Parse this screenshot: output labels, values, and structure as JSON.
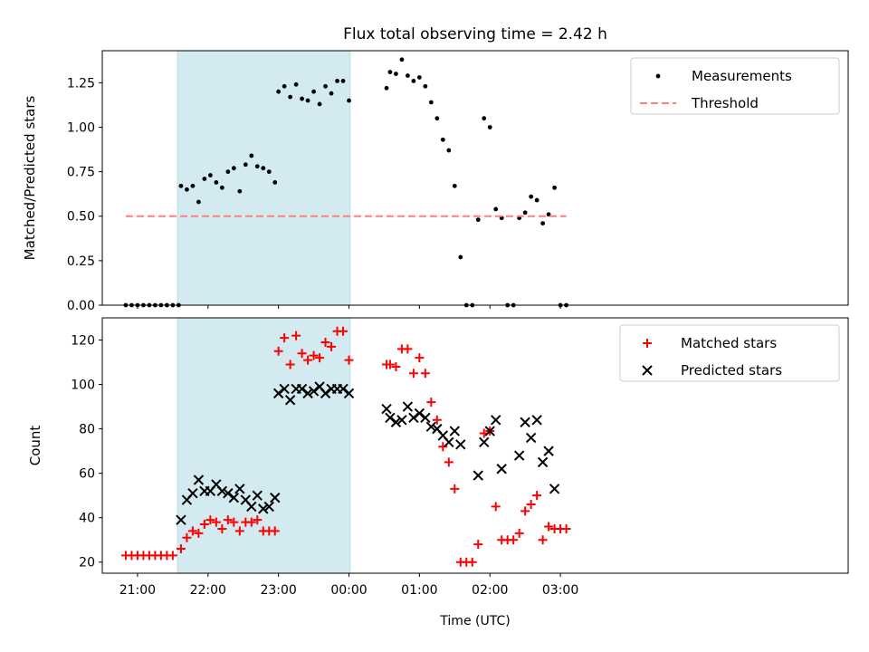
{
  "figure": {
    "title": "Flux total observing time = 2.42 h",
    "xlabel": "Time (UTC)"
  },
  "chart_data": [
    {
      "type": "scatter",
      "ylabel": "Matched/Predicted stars",
      "ylim": [
        0,
        1.43
      ],
      "yticks": [
        "0.00",
        "0.25",
        "0.50",
        "0.75",
        "1.00",
        "1.25"
      ],
      "grid": false,
      "legend": "top-right",
      "shaded_interval": {
        "start": "21:34",
        "end": "00:01",
        "color": "#d3eaf0"
      },
      "series": [
        {
          "name": "Measurements",
          "marker": "dot",
          "color": "#000000",
          "points": [
            [
              "20:50",
              0
            ],
            [
              "20:55",
              0
            ],
            [
              "21:00",
              0
            ],
            [
              "21:05",
              0
            ],
            [
              "21:10",
              0
            ],
            [
              "21:15",
              0
            ],
            [
              "21:20",
              0
            ],
            [
              "21:25",
              0
            ],
            [
              "21:30",
              0
            ],
            [
              "21:35",
              0
            ],
            [
              "21:37",
              0.67
            ],
            [
              "21:42",
              0.65
            ],
            [
              "21:47",
              0.67
            ],
            [
              "21:52",
              0.58
            ],
            [
              "21:57",
              0.71
            ],
            [
              "22:02",
              0.73
            ],
            [
              "22:07",
              0.69
            ],
            [
              "22:12",
              0.66
            ],
            [
              "22:17",
              0.75
            ],
            [
              "22:22",
              0.77
            ],
            [
              "22:27",
              0.64
            ],
            [
              "22:32",
              0.79
            ],
            [
              "22:37",
              0.84
            ],
            [
              "22:42",
              0.78
            ],
            [
              "22:47",
              0.77
            ],
            [
              "22:52",
              0.75
            ],
            [
              "22:57",
              0.69
            ],
            [
              "23:00",
              1.2
            ],
            [
              "23:05",
              1.23
            ],
            [
              "23:10",
              1.17
            ],
            [
              "23:15",
              1.24
            ],
            [
              "23:20",
              1.16
            ],
            [
              "23:25",
              1.15
            ],
            [
              "23:30",
              1.2
            ],
            [
              "23:35",
              1.13
            ],
            [
              "23:40",
              1.23
            ],
            [
              "23:45",
              1.19
            ],
            [
              "23:50",
              1.26
            ],
            [
              "23:55",
              1.26
            ],
            [
              "00:00",
              1.15
            ],
            [
              "00:32",
              1.22
            ],
            [
              "00:35",
              1.31
            ],
            [
              "00:40",
              1.3
            ],
            [
              "00:45",
              1.38
            ],
            [
              "00:50",
              1.29
            ],
            [
              "00:55",
              1.26
            ],
            [
              "01:00",
              1.28
            ],
            [
              "01:05",
              1.23
            ],
            [
              "01:10",
              1.14
            ],
            [
              "01:15",
              1.05
            ],
            [
              "01:20",
              0.93
            ],
            [
              "01:25",
              0.87
            ],
            [
              "01:30",
              0.67
            ],
            [
              "01:35",
              0.27
            ],
            [
              "01:40",
              0
            ],
            [
              "01:45",
              0
            ],
            [
              "01:50",
              0.48
            ],
            [
              "01:55",
              1.05
            ],
            [
              "02:00",
              1.0
            ],
            [
              "02:05",
              0.54
            ],
            [
              "02:10",
              0.49
            ],
            [
              "02:15",
              0
            ],
            [
              "02:20",
              0
            ],
            [
              "02:25",
              0.49
            ],
            [
              "02:30",
              0.52
            ],
            [
              "02:35",
              0.61
            ],
            [
              "02:40",
              0.59
            ],
            [
              "02:45",
              0.46
            ],
            [
              "02:50",
              0.51
            ],
            [
              "02:55",
              0.66
            ],
            [
              "03:00",
              0
            ],
            [
              "03:05",
              0
            ]
          ]
        },
        {
          "name": "Threshold",
          "style": "dashed",
          "color": "#ff7f7f",
          "points": [
            [
              "20:50",
              0.5
            ],
            [
              "03:05",
              0.5
            ]
          ]
        }
      ]
    },
    {
      "type": "scatter",
      "ylabel": "Count",
      "ylim": [
        15,
        130
      ],
      "yticks": [
        "20",
        "40",
        "60",
        "80",
        "100",
        "120"
      ],
      "xticks": [
        "21:00",
        "22:00",
        "23:00",
        "00:00",
        "01:00",
        "02:00",
        "03:00"
      ],
      "grid": false,
      "legend": "top-right",
      "shaded_interval": {
        "start": "21:34",
        "end": "00:01",
        "color": "#d3eaf0"
      },
      "series": [
        {
          "name": "Matched stars",
          "marker": "plus",
          "color": "#ff0000",
          "points": [
            [
              "20:50",
              23
            ],
            [
              "20:55",
              23
            ],
            [
              "21:00",
              23
            ],
            [
              "21:05",
              23
            ],
            [
              "21:10",
              23
            ],
            [
              "21:15",
              23
            ],
            [
              "21:20",
              23
            ],
            [
              "21:25",
              23
            ],
            [
              "21:30",
              23
            ],
            [
              "21:37",
              26
            ],
            [
              "21:42",
              31
            ],
            [
              "21:47",
              34
            ],
            [
              "21:52",
              33
            ],
            [
              "21:57",
              37
            ],
            [
              "22:02",
              39
            ],
            [
              "22:07",
              38
            ],
            [
              "22:12",
              35
            ],
            [
              "22:17",
              39
            ],
            [
              "22:22",
              38
            ],
            [
              "22:27",
              34
            ],
            [
              "22:32",
              38
            ],
            [
              "22:37",
              38
            ],
            [
              "22:42",
              39
            ],
            [
              "22:47",
              34
            ],
            [
              "22:52",
              34
            ],
            [
              "22:57",
              34
            ],
            [
              "23:00",
              115
            ],
            [
              "23:05",
              121
            ],
            [
              "23:10",
              109
            ],
            [
              "23:15",
              122
            ],
            [
              "23:20",
              114
            ],
            [
              "23:25",
              111
            ],
            [
              "23:30",
              113
            ],
            [
              "23:35",
              112
            ],
            [
              "23:40",
              119
            ],
            [
              "23:45",
              117
            ],
            [
              "23:50",
              124
            ],
            [
              "23:55",
              124
            ],
            [
              "00:00",
              111
            ],
            [
              "00:32",
              109
            ],
            [
              "00:35",
              109
            ],
            [
              "00:40",
              108
            ],
            [
              "00:45",
              116
            ],
            [
              "00:50",
              116
            ],
            [
              "00:55",
              105
            ],
            [
              "01:00",
              112
            ],
            [
              "01:05",
              105
            ],
            [
              "01:10",
              92
            ],
            [
              "01:15",
              84
            ],
            [
              "01:20",
              72
            ],
            [
              "01:25",
              65
            ],
            [
              "01:30",
              53
            ],
            [
              "01:35",
              20
            ],
            [
              "01:40",
              20
            ],
            [
              "01:45",
              20
            ],
            [
              "01:50",
              28
            ],
            [
              "01:55",
              78
            ],
            [
              "02:00",
              79
            ],
            [
              "02:05",
              45
            ],
            [
              "02:10",
              30
            ],
            [
              "02:15",
              30
            ],
            [
              "02:20",
              30
            ],
            [
              "02:25",
              33
            ],
            [
              "02:30",
              43
            ],
            [
              "02:35",
              46
            ],
            [
              "02:40",
              50
            ],
            [
              "02:45",
              30
            ],
            [
              "02:50",
              36
            ],
            [
              "02:55",
              35
            ],
            [
              "03:00",
              35
            ],
            [
              "03:05",
              35
            ]
          ]
        },
        {
          "name": "Predicted stars",
          "marker": "x",
          "color": "#000000",
          "points": [
            [
              "21:37",
              39
            ],
            [
              "21:42",
              48
            ],
            [
              "21:47",
              51
            ],
            [
              "21:52",
              57
            ],
            [
              "21:57",
              52
            ],
            [
              "22:02",
              52
            ],
            [
              "22:07",
              55
            ],
            [
              "22:12",
              52
            ],
            [
              "22:17",
              51
            ],
            [
              "22:22",
              49
            ],
            [
              "22:27",
              53
            ],
            [
              "22:32",
              48
            ],
            [
              "22:37",
              45
            ],
            [
              "22:42",
              50
            ],
            [
              "22:47",
              44
            ],
            [
              "22:52",
              45
            ],
            [
              "22:57",
              49
            ],
            [
              "23:00",
              96
            ],
            [
              "23:05",
              98
            ],
            [
              "23:10",
              93
            ],
            [
              "23:15",
              98
            ],
            [
              "23:20",
              98
            ],
            [
              "23:25",
              96
            ],
            [
              "23:30",
              97
            ],
            [
              "23:35",
              99
            ],
            [
              "23:40",
              96
            ],
            [
              "23:45",
              98
            ],
            [
              "23:50",
              98
            ],
            [
              "23:55",
              98
            ],
            [
              "00:00",
              96
            ],
            [
              "00:32",
              89
            ],
            [
              "00:35",
              85
            ],
            [
              "00:40",
              83
            ],
            [
              "00:45",
              84
            ],
            [
              "00:50",
              90
            ],
            [
              "00:55",
              85
            ],
            [
              "01:00",
              87
            ],
            [
              "01:05",
              85
            ],
            [
              "01:10",
              81
            ],
            [
              "01:15",
              80
            ],
            [
              "01:20",
              77
            ],
            [
              "01:25",
              74
            ],
            [
              "01:30",
              79
            ],
            [
              "01:35",
              73
            ],
            [
              "01:50",
              59
            ],
            [
              "01:55",
              74
            ],
            [
              "02:00",
              79
            ],
            [
              "02:05",
              84
            ],
            [
              "02:10",
              62
            ],
            [
              "02:25",
              68
            ],
            [
              "02:30",
              83
            ],
            [
              "02:35",
              76
            ],
            [
              "02:40",
              84
            ],
            [
              "02:45",
              65
            ],
            [
              "02:50",
              70
            ],
            [
              "02:55",
              53
            ]
          ]
        }
      ]
    }
  ]
}
